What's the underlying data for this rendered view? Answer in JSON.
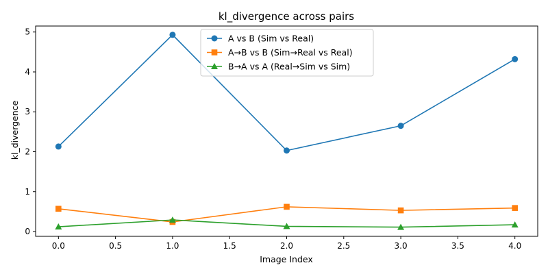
{
  "chart_data": {
    "type": "line",
    "title": "kl_divergence across pairs",
    "xlabel": "Image Index",
    "ylabel": "kl_divergence",
    "x": [
      0,
      1,
      2,
      3,
      4
    ],
    "xlim": [
      -0.2,
      4.2
    ],
    "ylim": [
      -0.12,
      5.15
    ],
    "xticks": [
      0.0,
      0.5,
      1.0,
      1.5,
      2.0,
      2.5,
      3.0,
      3.5,
      4.0
    ],
    "xtick_labels": [
      "0.0",
      "0.5",
      "1.0",
      "1.5",
      "2.0",
      "2.5",
      "3.0",
      "3.5",
      "4.0"
    ],
    "yticks": [
      0,
      1,
      2,
      3,
      4,
      5
    ],
    "ytick_labels": [
      "0",
      "1",
      "2",
      "3",
      "4",
      "5"
    ],
    "grid": false,
    "legend_position": "top-center",
    "series": [
      {
        "name": "A vs B (Sim vs Real)",
        "values": [
          2.13,
          4.93,
          2.03,
          2.65,
          4.32
        ],
        "color": "#1f77b4",
        "marker": "circle"
      },
      {
        "name": "A→B vs B (Sim→Real vs Real)",
        "values": [
          0.57,
          0.24,
          0.62,
          0.53,
          0.59
        ],
        "color": "#ff7f0e",
        "marker": "square"
      },
      {
        "name": "B→A vs A (Real→Sim vs Sim)",
        "values": [
          0.12,
          0.29,
          0.13,
          0.11,
          0.17
        ],
        "color": "#2ca02c",
        "marker": "triangle"
      }
    ]
  }
}
